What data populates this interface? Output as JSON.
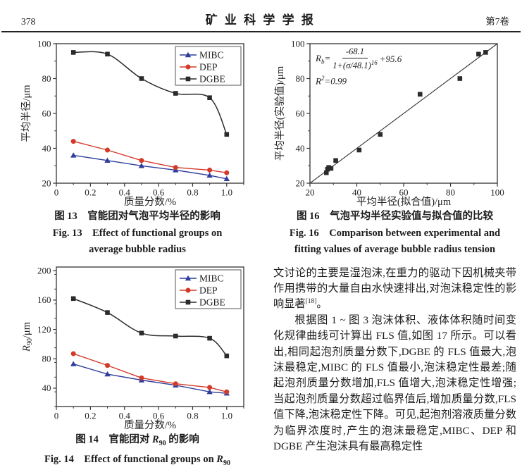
{
  "header": {
    "page_number": "378",
    "journal_title": "矿 业 科 学 学 报",
    "volume": "第7卷"
  },
  "figures": {
    "fig13": {
      "caption_cn": "图 13　官能团对气泡平均半径的影响",
      "caption_en_line1": "Fig. 13　Effect of functional groups on",
      "caption_en_line2": "average bubble radius"
    },
    "fig14": {
      "caption_cn_pre": "图 14　官能团对 ",
      "caption_cn_var": "R",
      "caption_cn_sub": "90",
      "caption_cn_post": " 的影响",
      "caption_en_pre": "Fig. 14　Effect of functional groups on ",
      "caption_en_var": "R",
      "caption_en_sub": "90"
    },
    "fig16": {
      "caption_cn": "图 16　气泡平均半径实验值与拟合值的比较",
      "caption_en_line1": "Fig. 16　Comparison between experimental and",
      "caption_en_line2": "fitting values of average bubble radius tension",
      "equation": {
        "lhs": "R",
        "lhs_sub": "b",
        "equals": "=",
        "numerator": "-68.1",
        "denominator": "1+(σ/48.1)",
        "den_exponent": "16",
        "tail": "+95.6",
        "r2_lhs": "R",
        "r2_sup": "2",
        "r2_rhs": "=0.99"
      }
    }
  },
  "body_text": {
    "p1_text": "文讨论的主要是湿泡沫,在重力的驱动下因机械夹带作用携带的大量自由水快速排出,对泡沫稳定性的影响显著",
    "p1_ref": "[18]",
    "p1_tail": "。",
    "p2": "根据图 1 ~ 图 3 泡沫体积、液体体积随时间变化规律曲线可计算出 FLS 值,如图 17 所示。可以看出,相同起泡剂质量分数下,DGBE 的 FLS 值最大,泡沫最稳定,MIBC 的 FLS 值最小,泡沫稳定性最差;随起泡剂质量分数增加,FLS 值增大,泡沫稳定性增强;当起泡剂质量分数超过临界值后,增加质量分数,FLS 值下降,泡沫稳定性下降。可见,起泡剂溶液质量分数为临界浓度时,产生的泡沫最稳定,MIBC、DEP 和 DGBE 产生泡沫具有最高稳定性"
  },
  "colors": {
    "mibc_blue": "#2f3e9c",
    "dep_red": "#d43a2a",
    "dgbe_black": "#2b2b2b",
    "axis": "#333333"
  },
  "chart_data": [
    {
      "id": "fig13",
      "type": "line",
      "xlabel": "质量分数/%",
      "ylabel": "平均半径/μm",
      "xlim": [
        0,
        1.1
      ],
      "ylim": [
        20,
        100
      ],
      "xticks": [
        0,
        0.2,
        0.4,
        0.6,
        0.8,
        1.0
      ],
      "xtick_labels": [
        "0",
        "0.2",
        "0.4",
        "0.6",
        "0.8",
        "1.0"
      ],
      "yticks": [
        20,
        40,
        60,
        80,
        100
      ],
      "ytick_labels": [
        "20",
        "40",
        "60",
        "80",
        "100"
      ],
      "x_minor_step": 0.1,
      "y_minor_step": 10,
      "x": [
        0.1,
        0.3,
        0.5,
        0.7,
        0.9,
        1.0
      ],
      "series": [
        {
          "name": "MIBC",
          "color": "#2f3e9c",
          "marker": "triangle",
          "smooth": false,
          "values": [
            36,
            33,
            30,
            27.5,
            24.5,
            22.5
          ]
        },
        {
          "name": "DEP",
          "color": "#d43a2a",
          "marker": "circle",
          "smooth": false,
          "values": [
            44,
            39,
            33,
            29,
            27.5,
            26
          ]
        },
        {
          "name": "DGBE",
          "color": "#2b2b2b",
          "marker": "square",
          "smooth": true,
          "values": [
            95,
            94,
            80,
            71.5,
            69,
            48
          ]
        }
      ],
      "legend": true
    },
    {
      "id": "fig14",
      "type": "line",
      "xlabel": "质量分数/%",
      "ylabel_parts": {
        "it": "R",
        "sub": "90",
        "rest": "/μm"
      },
      "xlim": [
        0,
        1.1
      ],
      "ylim": [
        15,
        205
      ],
      "xticks": [
        0,
        0.2,
        0.4,
        0.6,
        0.8,
        1.0
      ],
      "xtick_labels": [
        "0",
        "0.2",
        "0.4",
        "0.6",
        "0.8",
        "1.0"
      ],
      "yticks": [
        40,
        80,
        120,
        160,
        200
      ],
      "ytick_labels": [
        "40",
        "80",
        "120",
        "160",
        "200"
      ],
      "x_minor_step": 0.1,
      "y_minor_step": 20,
      "x": [
        0.1,
        0.3,
        0.5,
        0.7,
        0.9,
        1.0
      ],
      "series": [
        {
          "name": "MIBC",
          "color": "#2f3e9c",
          "marker": "triangle",
          "smooth": false,
          "values": [
            73,
            59,
            51,
            44,
            35,
            33
          ]
        },
        {
          "name": "DEP",
          "color": "#d43a2a",
          "marker": "circle",
          "smooth": false,
          "values": [
            87,
            71,
            54,
            46,
            41,
            35
          ]
        },
        {
          "name": "DGBE",
          "color": "#2b2b2b",
          "marker": "square",
          "smooth": true,
          "values": [
            162,
            143,
            115,
            111,
            108,
            84
          ]
        }
      ],
      "legend": true
    },
    {
      "id": "fig16",
      "type": "scatter",
      "xlabel": "平均半径(拟合值)/μm",
      "ylabel": "平均半径(实验值)/μm",
      "xlim": [
        20,
        100
      ],
      "ylim": [
        20,
        100
      ],
      "xticks": [
        20,
        40,
        60,
        80,
        100
      ],
      "xtick_labels": [
        "20",
        "40",
        "60",
        "80",
        "100"
      ],
      "yticks": [
        20,
        40,
        60,
        80,
        100
      ],
      "ytick_labels": [
        "20",
        "40",
        "60",
        "80",
        "100"
      ],
      "x_minor_step": 10,
      "y_minor_step": 10,
      "points": [
        [
          27,
          26
        ],
        [
          27.5,
          28
        ],
        [
          28,
          29
        ],
        [
          29,
          28.5
        ],
        [
          31,
          33
        ],
        [
          41,
          39
        ],
        [
          50,
          48
        ],
        [
          67,
          71
        ],
        [
          84,
          80
        ],
        [
          92,
          94
        ],
        [
          95,
          95
        ]
      ],
      "fit_line": [
        [
          20,
          20
        ],
        [
          100,
          100
        ]
      ],
      "point_color": "#2b2b2b",
      "marker": "square",
      "annotation_r2": "R²=0.99",
      "legend": false
    }
  ]
}
